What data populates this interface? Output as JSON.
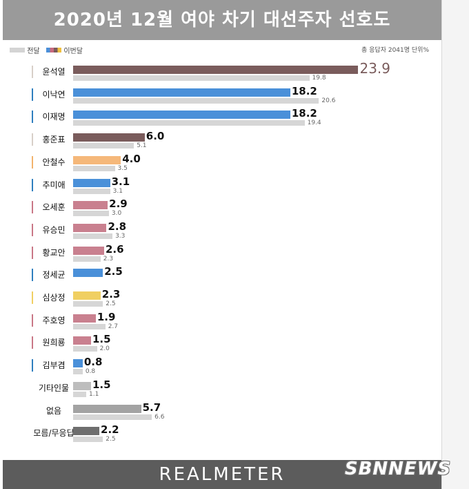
{
  "title": "2020년 12월 여야 차기 대선주자 선호도",
  "legend": {
    "prev_label": "전달",
    "cur_label": "이번달"
  },
  "meta": "총 응답자 2041명 단위%",
  "footer": {
    "logo": "REALMETER",
    "watermark": "SBNNEWS"
  },
  "colors": {
    "brown": "#7a5c5c",
    "blue": "#4a90d9",
    "pink": "#c9808f",
    "orange": "#f5b87a",
    "yellow": "#f0cf62",
    "lightgray": "#bdbdbd",
    "gray": "#a3a3a3",
    "darkgray": "#6e6e6e",
    "prev": "#d6d6d6"
  },
  "chart_data": {
    "type": "bar",
    "orientation": "horizontal",
    "title": "2020년 12월 여야 차기 대선주자 선호도",
    "categories": [
      "윤석열",
      "이낙연",
      "이재명",
      "홍준표",
      "안철수",
      "추미애",
      "오세훈",
      "유승민",
      "황교안",
      "정세균",
      "심상정",
      "주호영",
      "원희룡",
      "김부겸",
      "기타인물",
      "없음",
      "모름/무응답"
    ],
    "series": [
      {
        "name": "이번달",
        "values": [
          23.9,
          18.2,
          18.2,
          6.0,
          4.0,
          3.1,
          2.9,
          2.8,
          2.6,
          2.5,
          2.3,
          1.9,
          1.5,
          0.8,
          1.5,
          5.7,
          2.2
        ]
      },
      {
        "name": "전달",
        "values": [
          19.8,
          20.6,
          19.4,
          5.1,
          3.5,
          3.1,
          3.0,
          3.3,
          2.3,
          null,
          2.5,
          2.7,
          2.0,
          0.8,
          1.1,
          6.6,
          2.5
        ]
      }
    ],
    "value_labels_cur": [
      "23.9",
      "18.2",
      "18.2",
      "6.0",
      "4.0",
      "3.1",
      "2.9",
      "2.8",
      "2.6",
      "2.5",
      "2.3",
      "1.9",
      "1.5",
      "0.8",
      "1.5",
      "5.7",
      "2.2"
    ],
    "value_labels_prev": [
      "19.8",
      "20.6",
      "19.4",
      "5.1",
      "3.5",
      "3.1",
      "3.0",
      "3.3",
      "2.3",
      "",
      "2.5",
      "2.7",
      "2.0",
      "0.8",
      "1.1",
      "6.6",
      "2.5"
    ],
    "bar_colors": [
      "brown",
      "blue",
      "blue",
      "brown",
      "orange",
      "blue",
      "pink",
      "pink",
      "pink",
      "blue",
      "yellow",
      "pink",
      "pink",
      "blue",
      "lightgray",
      "gray",
      "darkgray"
    ],
    "mark_colors": [
      "#d8cfc8",
      "#2f7fbf",
      "#2f7fbf",
      "#d8cfc8",
      "#f2b36c",
      "#2f7fbf",
      "#c97786",
      "#c97786",
      "#c97786",
      "#2f7fbf",
      "#f0cf62",
      "#c97786",
      "#c97786",
      "#2f7fbf",
      "",
      "",
      ""
    ],
    "xlim": [
      0,
      25
    ],
    "grid": false,
    "legend_position": "top-left"
  }
}
